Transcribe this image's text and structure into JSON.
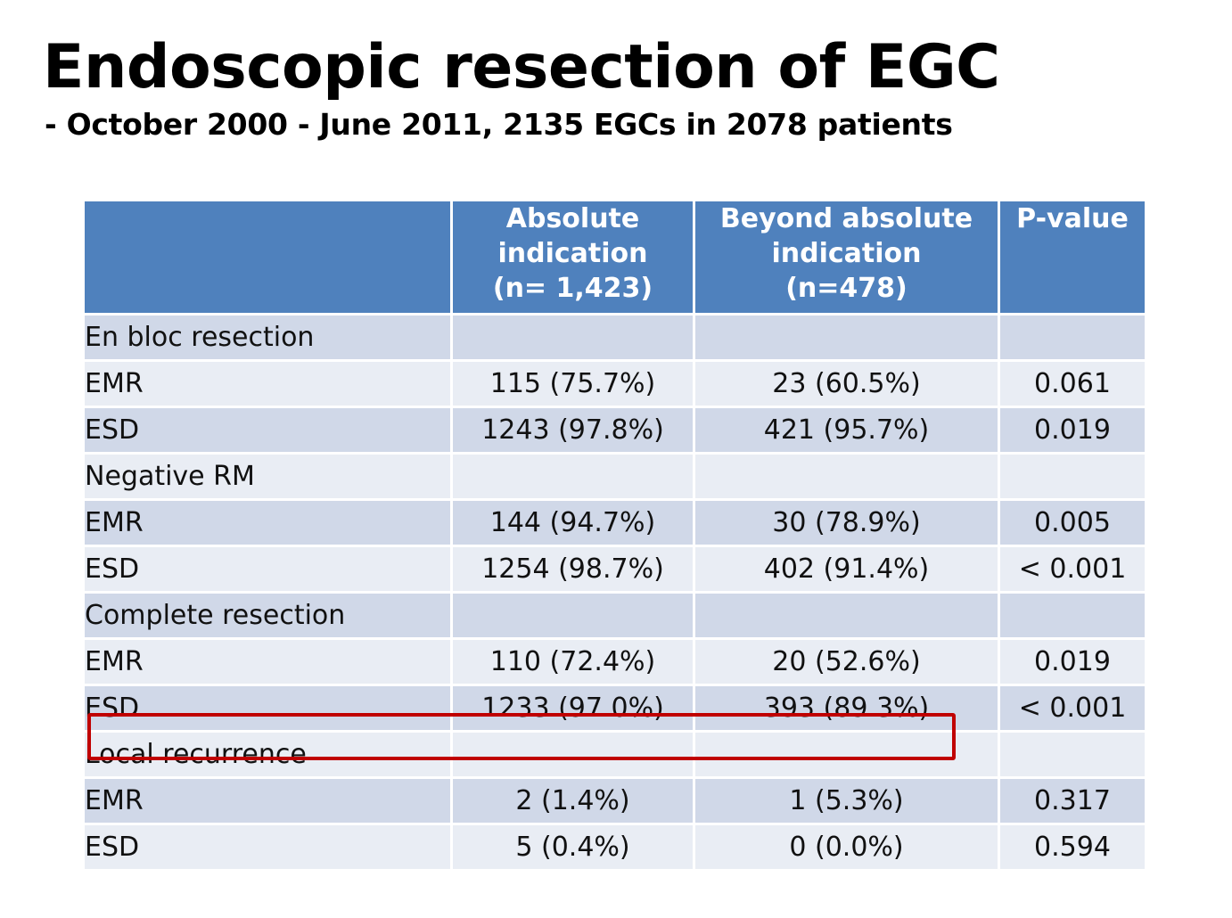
{
  "title": "Endoscopic resection of EGC",
  "subtitle": "- October 2000 - June 2011, 2135 EGCs in 2078 patients",
  "table": {
    "headers": {
      "col1": "",
      "col2_line1": "Absolute",
      "col2_line2": "indication",
      "col2_line3": "(n= 1,423)",
      "col3_line1": "Beyond absolute",
      "col3_line2": "indication",
      "col3_line3": "(n=478)",
      "col4": "P-value"
    },
    "rows": [
      {
        "label": "En bloc resection",
        "absolute": "",
        "beyond": "",
        "p": ""
      },
      {
        "label": "EMR",
        "absolute": "115 (75.7%)",
        "beyond": "23 (60.5%)",
        "p": "0.061"
      },
      {
        "label": "ESD",
        "absolute": "1243 (97.8%)",
        "beyond": "421 (95.7%)",
        "p": "0.019"
      },
      {
        "label": "Negative RM",
        "absolute": "",
        "beyond": "",
        "p": ""
      },
      {
        "label": "EMR",
        "absolute": "144 (94.7%)",
        "beyond": "30 (78.9%)",
        "p": "0.005"
      },
      {
        "label": "ESD",
        "absolute": "1254 (98.7%)",
        "beyond": "402 (91.4%)",
        "p": "< 0.001"
      },
      {
        "label": "Complete resection",
        "absolute": "",
        "beyond": "",
        "p": ""
      },
      {
        "label": "EMR",
        "absolute": "110 (72.4%)",
        "beyond": "20 (52.6%)",
        "p": "0.019"
      },
      {
        "label": "ESD",
        "absolute": "1233 (97.0%)",
        "beyond": "393 (89.3%)",
        "p": "< 0.001"
      },
      {
        "label": "Local recurrence",
        "absolute": "",
        "beyond": "",
        "p": ""
      },
      {
        "label": "EMR",
        "absolute": "2 (1.4%)",
        "beyond": "1 (5.3%)",
        "p": "0.317"
      },
      {
        "label": "ESD",
        "absolute": "5 (0.4%)",
        "beyond": "0 (0.0%)",
        "p": "0.594"
      }
    ]
  },
  "colors": {
    "header": "#4f81bd",
    "band_dark": "#d0d8e8",
    "band_light": "#e9edf4",
    "highlight": "#c00000"
  }
}
